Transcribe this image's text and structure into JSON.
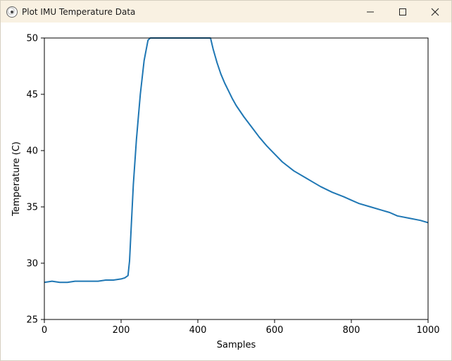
{
  "window": {
    "title": "Plot IMU Temperature Data",
    "controls": [
      "minimize-icon",
      "maximize-icon",
      "close-icon"
    ]
  },
  "chart_data": {
    "type": "line",
    "title": "",
    "xlabel": "Samples",
    "ylabel": "Temperature (C)",
    "xlim": [
      0,
      1000
    ],
    "ylim": [
      25,
      50
    ],
    "xticks": [
      "0",
      "200",
      "400",
      "600",
      "800",
      "1000"
    ],
    "yticks": [
      "25",
      "30",
      "35",
      "40",
      "45",
      "50"
    ],
    "grid": false,
    "legend": "none",
    "line_color": "#1f77b4",
    "series": [
      {
        "x": [
          0,
          20,
          40,
          60,
          80,
          100,
          120,
          140,
          160,
          180,
          200,
          210,
          218,
          222,
          226,
          232,
          240,
          250,
          260,
          270,
          276,
          300,
          350,
          400,
          433,
          440,
          450,
          460,
          470,
          480,
          490,
          500,
          520,
          540,
          560,
          580,
          600,
          620,
          650,
          680,
          700,
          720,
          750,
          780,
          800,
          820,
          850,
          880,
          900,
          920,
          950,
          980,
          1000
        ],
        "y": [
          28.3,
          28.4,
          28.3,
          28.3,
          28.4,
          28.4,
          28.4,
          28.4,
          28.5,
          28.5,
          28.6,
          28.7,
          28.9,
          30.2,
          33.0,
          37.0,
          41.0,
          45.0,
          48.0,
          49.8,
          50,
          50,
          50,
          50,
          50,
          49.0,
          47.8,
          46.8,
          46.0,
          45.3,
          44.6,
          44.0,
          43.0,
          42.1,
          41.2,
          40.4,
          39.7,
          39.0,
          38.2,
          37.6,
          37.2,
          36.8,
          36.3,
          35.9,
          35.6,
          35.3,
          35.0,
          34.7,
          34.5,
          34.2,
          34.0,
          33.8,
          33.6
        ]
      }
    ]
  }
}
